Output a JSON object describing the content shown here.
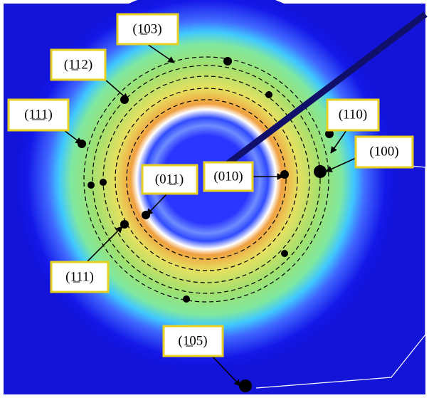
{
  "labels": [
    "(1̲03)",
    "(1̲12)",
    "(1̲1̲1)",
    "(110)",
    "(100)",
    "(01̲1)",
    "(010)",
    "(1̲11)",
    "(1̲05)"
  ]
}
